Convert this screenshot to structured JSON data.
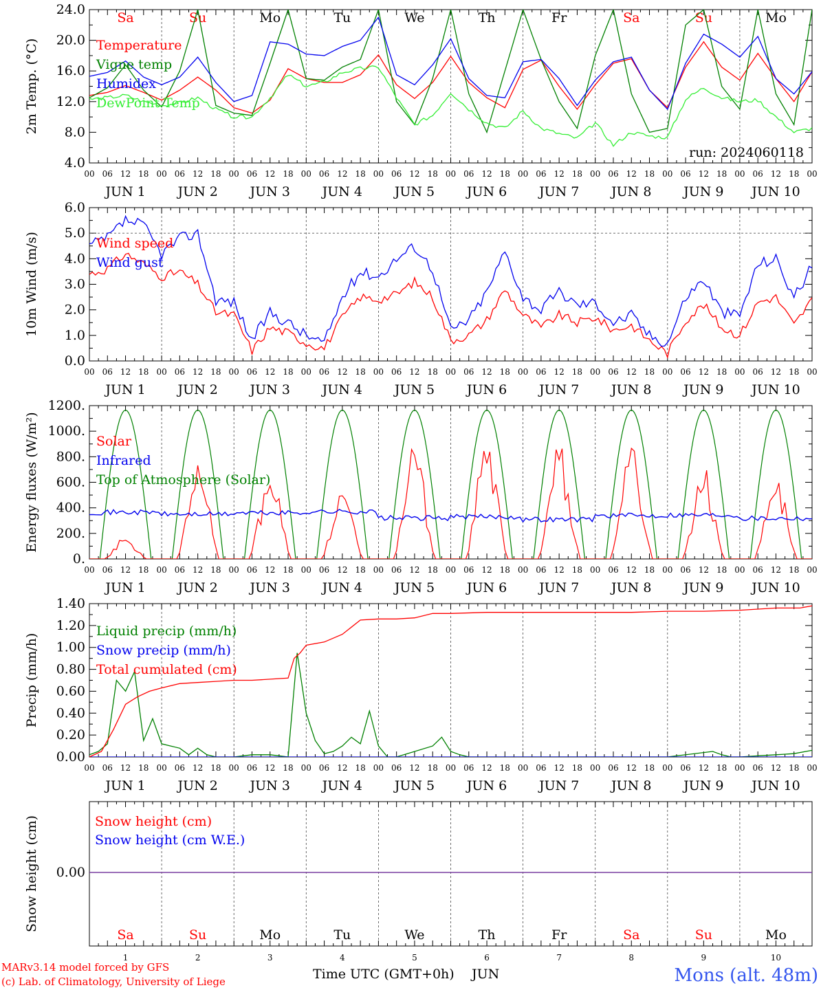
{
  "colors": {
    "red": "#ff0000",
    "green": "#008000",
    "lightgreen": "#33ee33",
    "blue": "#0000ee",
    "black": "#000000",
    "purple": "#7a3fa0",
    "station_blue": "#3355ee"
  },
  "days": {
    "weekdays": [
      "Sa",
      "Su",
      "Mo",
      "Tu",
      "We",
      "Th",
      "Fr",
      "Sa",
      "Su",
      "Mo"
    ],
    "weekday_colors": [
      "red",
      "red",
      "black",
      "black",
      "black",
      "black",
      "black",
      "red",
      "red",
      "black"
    ],
    "date_labels": [
      "JUN  1",
      "JUN  2",
      "JUN  3",
      "JUN  4",
      "JUN  5",
      "JUN  6",
      "JUN  7",
      "JUN  8",
      "JUN  9",
      "JUN 10"
    ],
    "hour_ticks": [
      "00",
      "06",
      "12",
      "18"
    ],
    "last_tick": "00",
    "bottom_numbers": [
      "1",
      "2",
      "3",
      "4",
      "5",
      "6",
      "7",
      "8",
      "9",
      "10"
    ]
  },
  "footer": {
    "credit_line1": "MARv3.14 model forced by GFS",
    "credit_line2": "(c) Lab. of Climatology, University of Liege",
    "x_axis_title": "Time UTC (GMT+0h)",
    "month": "JUN",
    "station": "Mons (alt. 48m)"
  },
  "chart_data": [
    {
      "type": "line",
      "ylabel": "2m Temp. (°C)",
      "ylim": [
        4.0,
        24.0
      ],
      "yticks": [
        "4.0",
        "8.0",
        "12.0",
        "16.0",
        "20.0",
        "24.0"
      ],
      "annotation": "run: 2024060118",
      "x_unit": "hours since Jun 1 00 UTC",
      "series": [
        {
          "name": "Temperature",
          "color": "red",
          "x": [
            0,
            6,
            12,
            18,
            24,
            30,
            36,
            42,
            48,
            54,
            60,
            66,
            72,
            78,
            84,
            90,
            96,
            102,
            108,
            114,
            120,
            126,
            132,
            138,
            144,
            150,
            156,
            162,
            168,
            174,
            180,
            186,
            192,
            198,
            204,
            210,
            216,
            222,
            228,
            234,
            240
          ],
          "values": [
            12.8,
            13.2,
            14.1,
            13.2,
            12.2,
            13.5,
            15.2,
            13.5,
            11.2,
            10.5,
            12.2,
            16.3,
            15.0,
            14.5,
            14.5,
            15.5,
            18.1,
            14.2,
            12.4,
            14.5,
            17.9,
            14.5,
            12.5,
            11.2,
            16.2,
            17.4,
            14.0,
            11.0,
            14.2,
            17.0,
            17.6,
            13.5,
            11.2,
            16.5,
            19.8,
            16.5,
            14.8,
            18.3,
            15.0,
            12.0,
            15.9
          ]
        },
        {
          "name": "Vigne temp",
          "color": "green",
          "x": [
            0,
            6,
            12,
            18,
            24,
            30,
            36,
            42,
            48,
            54,
            60,
            66,
            72,
            78,
            84,
            90,
            96,
            102,
            108,
            114,
            120,
            126,
            132,
            138,
            144,
            150,
            156,
            162,
            168,
            174,
            180,
            186,
            192,
            198,
            204,
            210,
            216,
            222,
            228,
            234,
            240
          ],
          "values": [
            12.5,
            13.8,
            16.8,
            13.5,
            11.3,
            16.0,
            24.0,
            11.5,
            10.5,
            10.2,
            17.0,
            24.0,
            15.0,
            14.8,
            16.5,
            17.5,
            24.0,
            12.0,
            9.0,
            15.0,
            24.0,
            13.0,
            8.0,
            16.0,
            24.0,
            17.5,
            12.0,
            8.5,
            18.0,
            24.0,
            13.0,
            8.0,
            8.5,
            22.0,
            24.0,
            14.0,
            11.0,
            24.0,
            13.0,
            9.0,
            24.0
          ]
        },
        {
          "name": "Humidex",
          "color": "blue",
          "x": [
            0,
            6,
            12,
            18,
            24,
            30,
            36,
            42,
            48,
            54,
            60,
            66,
            72,
            78,
            84,
            90,
            96,
            102,
            108,
            114,
            120,
            126,
            132,
            138,
            144,
            150,
            156,
            162,
            168,
            174,
            180,
            186,
            192,
            198,
            204,
            210,
            216,
            222,
            228,
            234,
            240
          ],
          "values": [
            15.3,
            15.8,
            17.3,
            15.2,
            14.2,
            15.2,
            17.8,
            14.5,
            12.0,
            12.8,
            19.8,
            19.5,
            18.2,
            18.0,
            19.2,
            20.0,
            23.0,
            15.5,
            14.2,
            16.8,
            20.2,
            15.0,
            12.8,
            12.5,
            17.2,
            17.5,
            15.0,
            11.5,
            14.8,
            17.2,
            17.8,
            13.5,
            11.0,
            17.0,
            20.8,
            19.5,
            17.8,
            20.5,
            15.0,
            13.0,
            15.9
          ]
        },
        {
          "name": "DewPoint Temp",
          "color": "lightgreen",
          "x": [
            0,
            6,
            12,
            18,
            24,
            30,
            36,
            42,
            48,
            54,
            60,
            66,
            72,
            78,
            84,
            90,
            96,
            102,
            108,
            114,
            120,
            126,
            132,
            138,
            144,
            150,
            156,
            162,
            168,
            174,
            180,
            186,
            192,
            198,
            204,
            210,
            216,
            222,
            228,
            234,
            240
          ],
          "values": [
            12.3,
            12.5,
            12.8,
            12.0,
            11.5,
            11.8,
            12.5,
            11.0,
            10.0,
            10.0,
            12.5,
            15.5,
            14.0,
            14.5,
            15.8,
            16.3,
            16.5,
            12.5,
            9.0,
            10.2,
            13.2,
            11.0,
            9.2,
            8.5,
            10.8,
            8.5,
            7.8,
            7.2,
            9.2,
            6.3,
            8.0,
            7.5,
            7.3,
            12.3,
            13.8,
            12.5,
            12.0,
            12.2,
            10.0,
            8.0,
            8.5
          ]
        }
      ]
    },
    {
      "type": "line",
      "ylabel": "10m Wind (m/s)",
      "ylim": [
        0.0,
        6.0
      ],
      "yticks": [
        "0.0",
        "1.0",
        "2.0",
        "3.0",
        "4.0",
        "5.0",
        "6.0"
      ],
      "reference_line": 5.0,
      "x_unit": "hours since Jun 1 00 UTC",
      "series": [
        {
          "name": "Wind speed",
          "color": "red",
          "x": [
            0,
            6,
            12,
            18,
            24,
            30,
            36,
            42,
            48,
            54,
            60,
            66,
            72,
            78,
            84,
            90,
            96,
            102,
            108,
            114,
            120,
            126,
            132,
            138,
            144,
            150,
            156,
            162,
            168,
            174,
            180,
            186,
            192,
            198,
            204,
            210,
            216,
            222,
            228,
            234,
            240
          ],
          "values": [
            3.4,
            3.6,
            4.2,
            3.8,
            3.3,
            3.5,
            3.0,
            1.9,
            1.8,
            0.4,
            1.3,
            1.1,
            0.7,
            0.5,
            1.7,
            2.5,
            2.4,
            2.6,
            3.1,
            2.5,
            0.8,
            1.0,
            1.6,
            2.8,
            1.8,
            1.3,
            1.8,
            1.5,
            1.7,
            1.2,
            1.4,
            0.8,
            0.3,
            1.6,
            2.2,
            1.3,
            1.0,
            2.3,
            2.5,
            1.4,
            2.4
          ]
        },
        {
          "name": "Wind gust",
          "color": "blue",
          "x": [
            0,
            6,
            12,
            18,
            24,
            30,
            36,
            42,
            48,
            54,
            60,
            66,
            72,
            78,
            84,
            90,
            96,
            102,
            108,
            114,
            120,
            126,
            132,
            138,
            144,
            150,
            156,
            162,
            168,
            174,
            180,
            186,
            192,
            198,
            204,
            210,
            216,
            222,
            228,
            234,
            240
          ],
          "values": [
            4.5,
            4.8,
            5.5,
            5.3,
            4.2,
            4.8,
            5.0,
            2.4,
            2.3,
            0.8,
            1.9,
            1.5,
            1.0,
            0.7,
            2.5,
            3.5,
            3.3,
            4.0,
            4.5,
            3.6,
            1.2,
            1.6,
            2.7,
            4.3,
            2.5,
            2.0,
            2.7,
            2.2,
            2.3,
            1.5,
            1.8,
            1.0,
            0.7,
            2.5,
            3.2,
            1.9,
            1.8,
            3.8,
            4.0,
            2.5,
            3.7
          ]
        }
      ]
    },
    {
      "type": "line",
      "ylabel": "Energy fluxes (W/m²)",
      "ylim": [
        0,
        1200
      ],
      "yticks": [
        "0.",
        "200.",
        "400.",
        "600.",
        "800.",
        "1000.",
        "1200."
      ],
      "x_unit": "hours since Jun 1 00 UTC",
      "toa_peak_hour": 12,
      "toa_peak": 1165,
      "toa_day_hours": [
        3.5,
        20.5
      ],
      "series": [
        {
          "name": "Solar",
          "color": "red",
          "daily_peaks": [
            170,
            750,
            670,
            520,
            860,
            890,
            900,
            880,
            700,
            650
          ]
        },
        {
          "name": "Infrared",
          "color": "blue",
          "values_by_day": [
            365,
            350,
            360,
            370,
            320,
            330,
            310,
            340,
            345,
            320
          ]
        },
        {
          "name": "Top of Atmosphere (Solar)",
          "color": "green"
        }
      ]
    },
    {
      "type": "line",
      "ylabel": "Precip (mm/h)",
      "ylim": [
        0.0,
        1.4
      ],
      "yticks": [
        "0.00",
        "0.20",
        "0.40",
        "0.60",
        "0.80",
        "1.00",
        "1.20",
        "1.40"
      ],
      "x_unit": "hours since Jun 1 00 UTC",
      "series": [
        {
          "name": "Liquid precip (mm/h)",
          "color": "green",
          "x": [
            0,
            3,
            6,
            9,
            12,
            15,
            18,
            21,
            24,
            27,
            30,
            33,
            36,
            39,
            42,
            48,
            54,
            60,
            66,
            69,
            72,
            75,
            78,
            81,
            84,
            87,
            90,
            93,
            96,
            99,
            102,
            114,
            117,
            120,
            123,
            126,
            132,
            192,
            207,
            210,
            213,
            216,
            228,
            234,
            240
          ],
          "values": [
            0.02,
            0.05,
            0.12,
            0.7,
            0.6,
            0.78,
            0.15,
            0.35,
            0.12,
            0.1,
            0.08,
            0.02,
            0.08,
            0.02,
            0.0,
            0.0,
            0.02,
            0.02,
            0.0,
            0.95,
            0.4,
            0.15,
            0.03,
            0.05,
            0.1,
            0.18,
            0.12,
            0.42,
            0.1,
            0.0,
            0.0,
            0.1,
            0.18,
            0.05,
            0.02,
            0.0,
            0.0,
            0.0,
            0.05,
            0.02,
            0.0,
            0.0,
            0.02,
            0.03,
            0.06
          ]
        },
        {
          "name": "Snow precip (mm/h)",
          "color": "blue",
          "x": [
            0,
            240
          ],
          "values": [
            0.0,
            0.0
          ]
        },
        {
          "name": "Total cumulated (cm)",
          "color": "red",
          "x": [
            0,
            4,
            8,
            12,
            16,
            20,
            24,
            30,
            36,
            42,
            48,
            54,
            60,
            66,
            68,
            70,
            72,
            78,
            84,
            90,
            96,
            102,
            108,
            114,
            120,
            132,
            144,
            156,
            168,
            180,
            192,
            204,
            216,
            228,
            236,
            240
          ],
          "values": [
            0.0,
            0.05,
            0.25,
            0.48,
            0.55,
            0.6,
            0.63,
            0.67,
            0.68,
            0.69,
            0.7,
            0.7,
            0.71,
            0.72,
            0.9,
            0.95,
            1.02,
            1.05,
            1.12,
            1.25,
            1.26,
            1.26,
            1.27,
            1.31,
            1.31,
            1.32,
            1.32,
            1.32,
            1.32,
            1.32,
            1.33,
            1.33,
            1.34,
            1.36,
            1.36,
            1.38
          ]
        }
      ]
    },
    {
      "type": "line",
      "ylabel": "Snow height (cm)",
      "yticks": [
        "0.00"
      ],
      "series": [
        {
          "name": "Snow height (cm)",
          "color": "red",
          "x": [
            0,
            240
          ],
          "values": [
            0.0,
            0.0
          ]
        },
        {
          "name": "Snow height (cm W.E.)",
          "color": "blue",
          "x": [
            0,
            240
          ],
          "values": [
            0.0,
            0.0
          ]
        }
      ]
    }
  ]
}
